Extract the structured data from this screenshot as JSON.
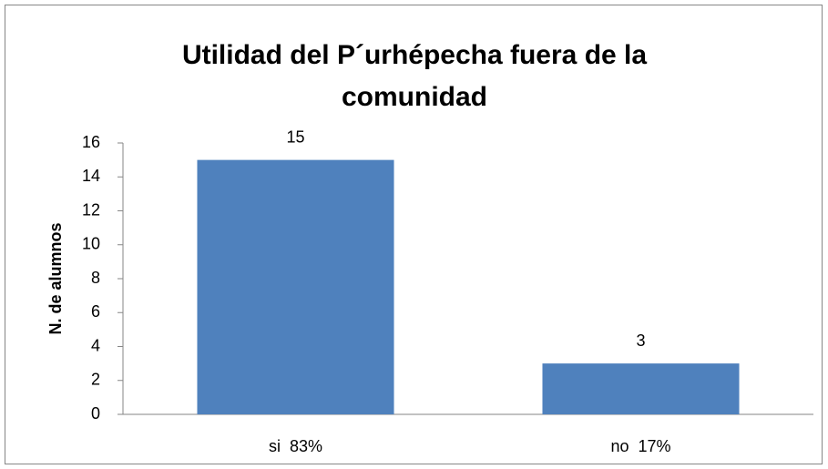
{
  "chart_data": {
    "type": "bar",
    "title": "Utilidad del P´urhépecha fuera de la comunidad",
    "y_label": "N. de alumnos",
    "categories": [
      "si  83%",
      "no  17%"
    ],
    "values": [
      15,
      3
    ],
    "color": "#4f81bd",
    "ylim": [
      0,
      16
    ],
    "yticks": [
      0,
      2,
      4,
      6,
      8,
      10,
      12,
      14,
      16
    ],
    "grid": false
  }
}
